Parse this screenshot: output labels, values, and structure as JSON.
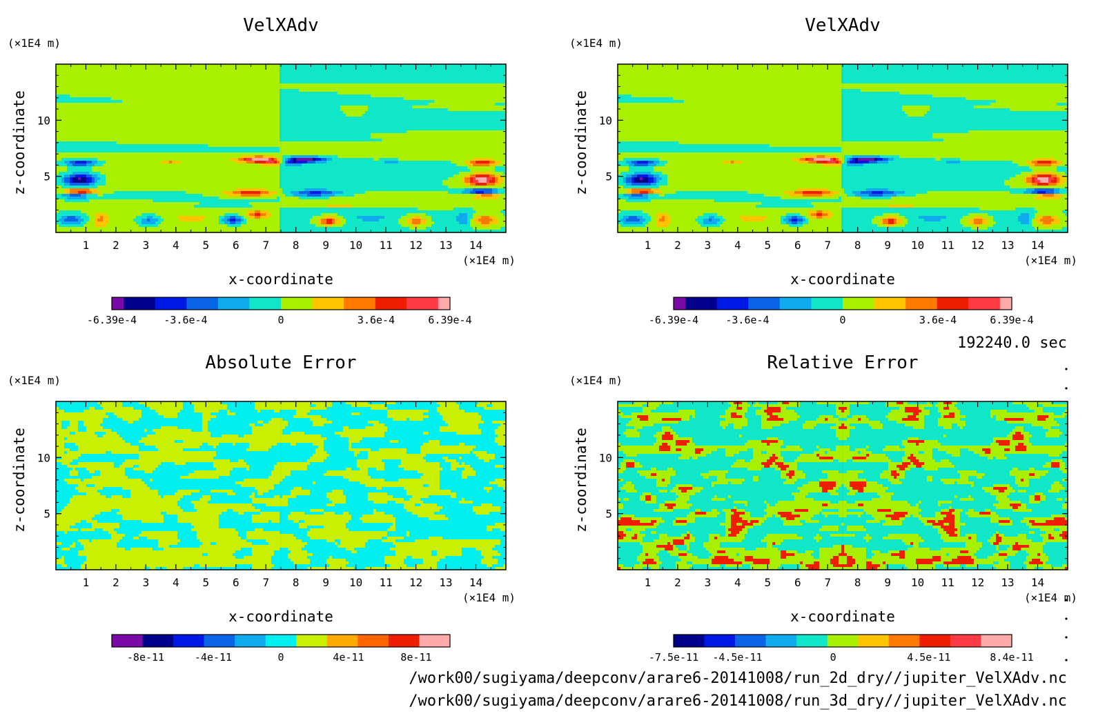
{
  "time_label": "192240.0 sec",
  "file_paths": [
    "/work00/sugiyama/deepconv/arare6-20141008/run_2d_dry//jupiter_VelXAdv.nc",
    "/work00/sugiyama/deepconv/arare6-20141008/run_3d_dry//jupiter_VelXAdv.nc"
  ],
  "colors": {
    "scale_velx": [
      "#7a0aa8",
      "#00008c",
      "#0018e6",
      "#0a64e6",
      "#10aaee",
      "#10e6c8",
      "#a8f000",
      "#ffc400",
      "#ff7a00",
      "#f01e00",
      "#ff3c46",
      "#ffaaaa"
    ],
    "scale_abs": [
      "#7a0aa8",
      "#00008c",
      "#0018e6",
      "#0a64e6",
      "#10aaee",
      "#00f0f0",
      "#c8f000",
      "#ffaa00",
      "#ff6400",
      "#f01e00",
      "#ffaaaa"
    ],
    "scale_rel": [
      "#00008c",
      "#0018e6",
      "#0a64e6",
      "#10aaee",
      "#10e6c8",
      "#a8f000",
      "#ffc400",
      "#ff7a00",
      "#f01e00",
      "#ff3c46",
      "#ffaaaa"
    ]
  },
  "chart_data": [
    {
      "type": "heatmap",
      "title": "VelXAdv",
      "xlabel": "x-coordinate",
      "ylabel": "z-coordinate",
      "x_unit": "(×1E4 m)",
      "y_unit": "(×1E4 m)",
      "xlim": [
        0,
        15
      ],
      "ylim": [
        0,
        15
      ],
      "x_ticks": [
        "1",
        "2",
        "3",
        "4",
        "5",
        "6",
        "7",
        "8",
        "9",
        "10",
        "11",
        "12",
        "13",
        "14"
      ],
      "y_ticks": [
        "5",
        "10"
      ],
      "colorbar_labels": [
        "-6.39e-4",
        "-3.6e-4",
        "0",
        "3.6e-4",
        "6.39e-4"
      ],
      "colorbar_range": [
        -0.000639,
        0.000639
      ]
    },
    {
      "type": "heatmap",
      "title": "VelXAdv",
      "xlabel": "x-coordinate",
      "ylabel": "z-coordinate",
      "x_unit": "(×1E4 m)",
      "y_unit": "(×1E4 m)",
      "xlim": [
        0,
        15
      ],
      "ylim": [
        0,
        15
      ],
      "x_ticks": [
        "1",
        "2",
        "3",
        "4",
        "5",
        "6",
        "7",
        "8",
        "9",
        "10",
        "11",
        "12",
        "13",
        "14"
      ],
      "y_ticks": [
        "5",
        "10"
      ],
      "colorbar_labels": [
        "-6.39e-4",
        "-3.6e-4",
        "0",
        "3.6e-4",
        "6.39e-4"
      ],
      "colorbar_range": [
        -0.000639,
        0.000639
      ]
    },
    {
      "type": "heatmap",
      "title": "Absolute Error",
      "xlabel": "x-coordinate",
      "ylabel": "z-coordinate",
      "x_unit": "(×1E4 m)",
      "y_unit": "(×1E4 m)",
      "xlim": [
        0,
        15
      ],
      "ylim": [
        0,
        15
      ],
      "x_ticks": [
        "1",
        "2",
        "3",
        "4",
        "5",
        "6",
        "7",
        "8",
        "9",
        "10",
        "11",
        "12",
        "13",
        "14"
      ],
      "y_ticks": [
        "5",
        "10"
      ],
      "colorbar_labels": [
        "-8e-11",
        "-4e-11",
        "0",
        "4e-11",
        "8e-11"
      ],
      "colorbar_range": [
        -1e-10,
        1e-10
      ]
    },
    {
      "type": "heatmap",
      "title": "Relative Error",
      "xlabel": "x-coordinate",
      "ylabel": "z-coordinate",
      "x_unit": "(×1E4 m)",
      "y_unit": "(×1E4 m)",
      "xlim": [
        0,
        15
      ],
      "ylim": [
        0,
        15
      ],
      "x_ticks": [
        "1",
        "2",
        "3",
        "4",
        "5",
        "6",
        "7",
        "8",
        "9",
        "10",
        "11",
        "12",
        "13",
        "14"
      ],
      "y_ticks": [
        "5",
        "10"
      ],
      "colorbar_labels": [
        "-7.5e-11",
        "-4.5e-11",
        "0",
        "4.5e-11",
        "8.4e-11"
      ],
      "colorbar_range": [
        -7.5e-11,
        8.4e-11
      ]
    }
  ]
}
